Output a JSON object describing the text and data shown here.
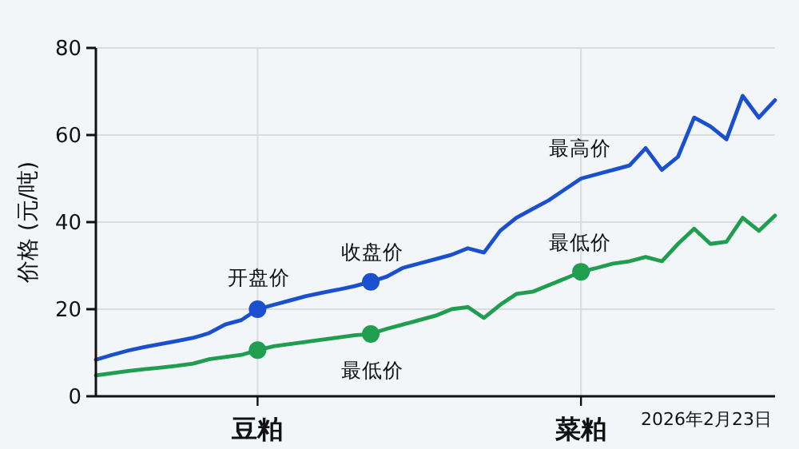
{
  "chart_data": {
    "type": "line",
    "ylabel": "价格 (元/吨)",
    "categories": [
      null,
      null,
      null,
      null,
      null,
      null,
      null,
      null,
      null,
      null,
      "豆粕",
      null,
      null,
      null,
      null,
      null,
      null,
      null,
      null,
      null,
      null,
      null,
      null,
      null,
      null,
      null,
      null,
      null,
      null,
      null,
      "菜粕",
      null,
      null,
      null,
      null,
      null,
      null,
      null,
      null,
      null,
      null,
      null,
      null
    ],
    "series": [
      {
        "color": "#1a4fcf",
        "marker": "none",
        "values": [
          8.4,
          9.5,
          10.5,
          11.3,
          12,
          12.7,
          13.4,
          14.5,
          16.5,
          17.5,
          20,
          21,
          22,
          23,
          23.8,
          24.5,
          25.3,
          26.3,
          27.5,
          29.5,
          30.5,
          31.5,
          32.5,
          34,
          33,
          38,
          41,
          43,
          45,
          47.5,
          50,
          51,
          52,
          53,
          57,
          52,
          55,
          64,
          62,
          59,
          69,
          64,
          68
        ]
      },
      {
        "color": "#1e9e4e",
        "marker": "none",
        "values": [
          4.8,
          5.3,
          5.8,
          6.2,
          6.6,
          7,
          7.5,
          8.5,
          9,
          9.5,
          10.6,
          11.5,
          12,
          12.5,
          13,
          13.5,
          14,
          14.3,
          15.5,
          16.5,
          17.5,
          18.5,
          20,
          20.5,
          18,
          21,
          23.5,
          24,
          25.5,
          27,
          28.6,
          29.5,
          30.5,
          31,
          32,
          31,
          35,
          38.5,
          35,
          35.5,
          41,
          38,
          41.5
        ]
      },
      {
        "type": "scatter",
        "color": "#1a4fcf",
        "marker": "circle",
        "values": [
          null,
          null,
          null,
          null,
          null,
          null,
          null,
          null,
          null,
          null,
          20,
          null,
          null,
          null,
          null,
          null,
          null,
          26.3,
          null,
          null,
          null,
          null,
          null,
          null,
          null,
          null,
          null,
          null,
          null,
          null,
          null,
          null,
          null,
          null,
          null,
          null,
          null,
          null,
          null,
          null,
          null,
          null,
          null
        ]
      },
      {
        "type": "scatter",
        "color": "#1e9e4e",
        "marker": "circle",
        "values": [
          null,
          null,
          null,
          null,
          null,
          null,
          null,
          null,
          null,
          null,
          10.6,
          null,
          null,
          null,
          null,
          null,
          null,
          14.3,
          null,
          null,
          null,
          null,
          null,
          null,
          null,
          null,
          null,
          null,
          null,
          null,
          28.6,
          null,
          null,
          null,
          null,
          null,
          null,
          null,
          null,
          null,
          null,
          null,
          null
        ]
      }
    ],
    "ylim": [
      0,
      80
    ],
    "yticks": [
      0,
      20,
      40,
      60,
      80
    ],
    "grid": true,
    "annotations": [
      "开盘价",
      "收盘价",
      "最高价",
      "最低价",
      "最低价",
      "2026年2月23日"
    ]
  }
}
